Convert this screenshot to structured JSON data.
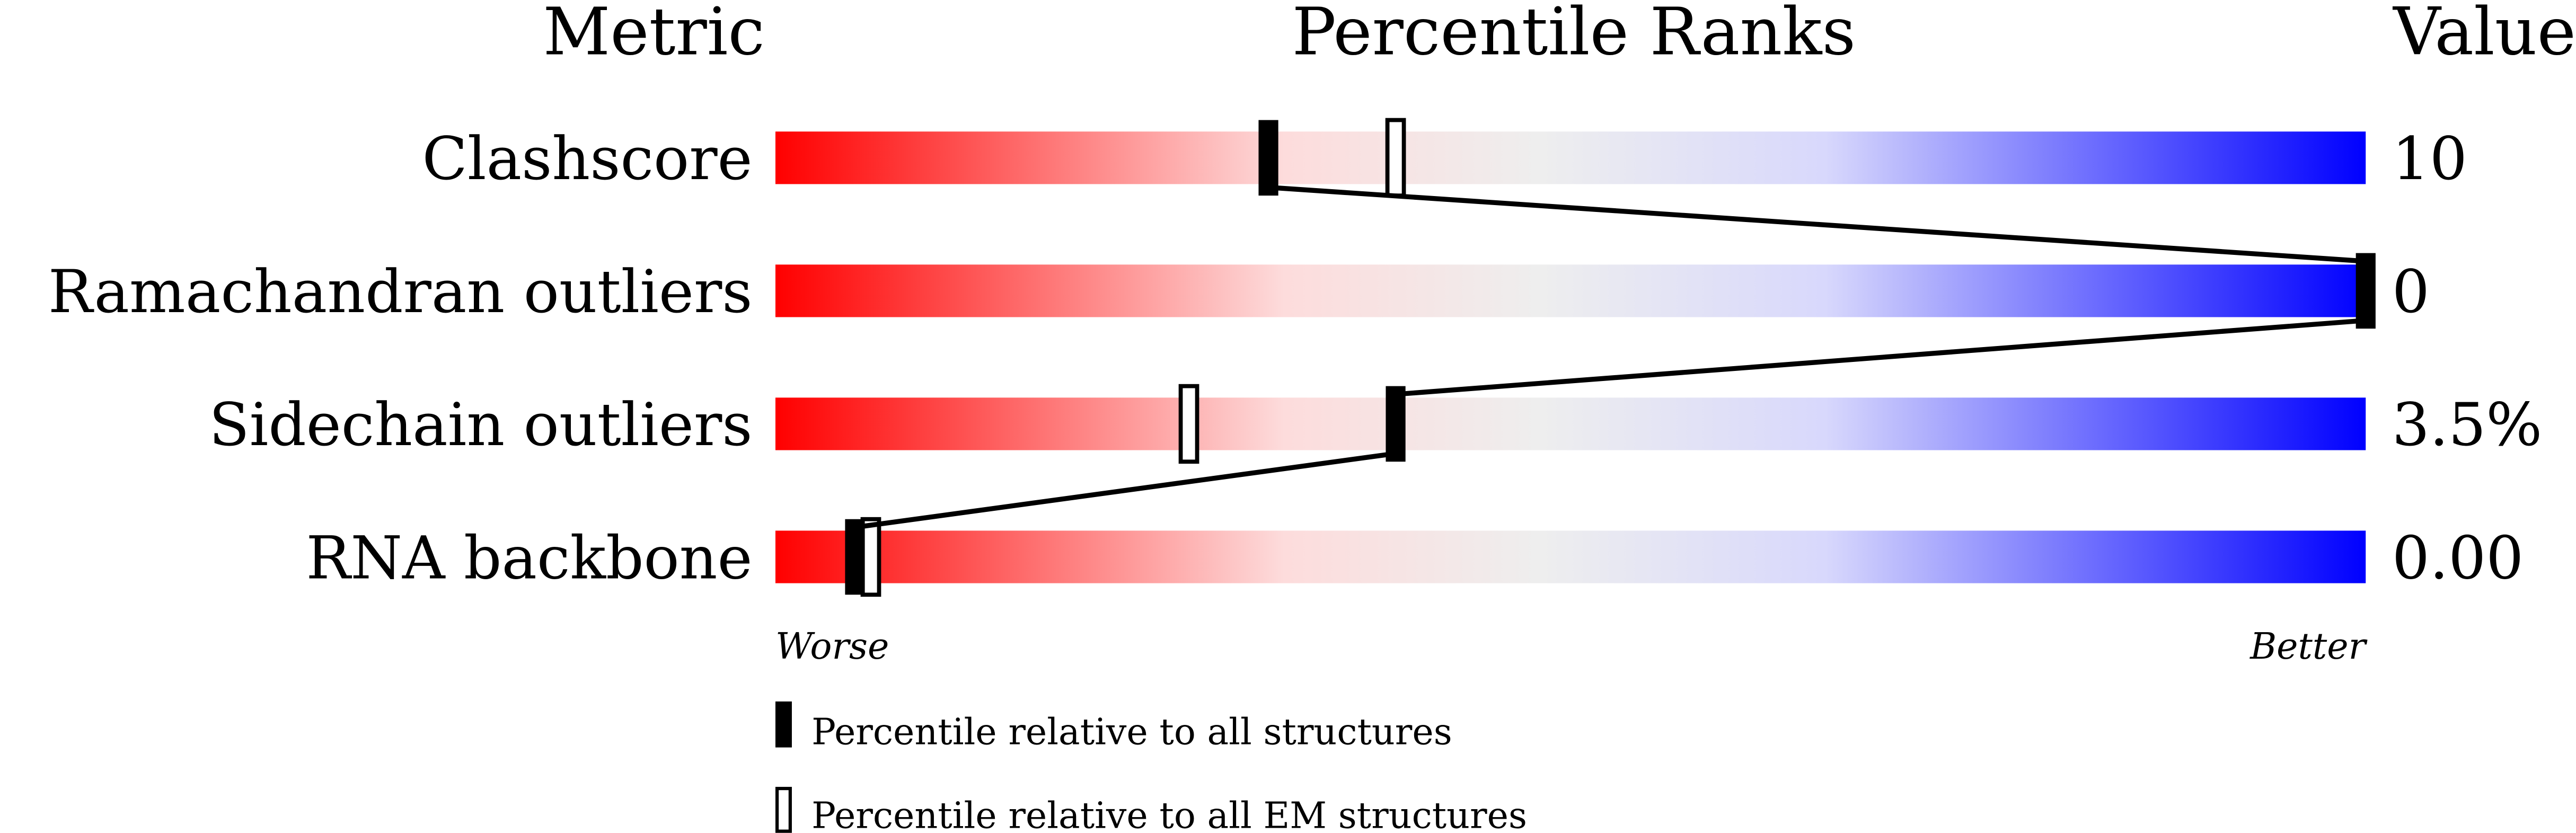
{
  "chart_data": {
    "type": "percentile-slider",
    "headers": {
      "metric": "Metric",
      "ranks": "Percentile Ranks",
      "value": "Value"
    },
    "metrics": [
      {
        "label": "Clashscore",
        "value": "10",
        "percentile_all": 31,
        "percentile_em": 39
      },
      {
        "label": "Ramachandran outliers",
        "value": "0",
        "percentile_all": 100,
        "percentile_em": 100
      },
      {
        "label": "Sidechain outliers",
        "value": "3.5%",
        "percentile_all": 39,
        "percentile_em": 26
      },
      {
        "label": "RNA backbone",
        "value": "0.00",
        "percentile_all": 5,
        "percentile_em": 6
      }
    ],
    "axis": {
      "worse": "Worse",
      "better": "Better",
      "range": [
        0,
        100
      ]
    },
    "legend": {
      "all": "Percentile relative to all structures",
      "em": "Percentile relative to all EM structures"
    },
    "gradient_colors": [
      "#ff0000",
      "#fddcdc",
      "#eeeeee",
      "#d8d8fc",
      "#0000ff"
    ]
  }
}
